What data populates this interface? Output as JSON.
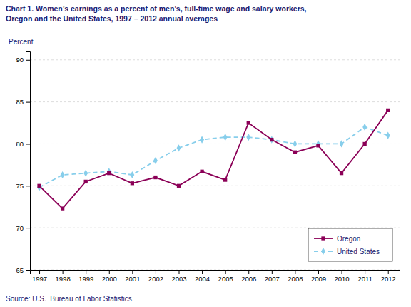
{
  "chart_data": {
    "type": "line",
    "title": "Chart 1. Women’s earnings as a percent of men’s, full-time wage and salary workers,\nOregon and the United States, 1997 – 2012 annual averages",
    "ylabel": "Percent",
    "source": "Source: U.S.  Bureau of Labor Statistics.",
    "x": [
      1997,
      1998,
      1999,
      2000,
      2001,
      2002,
      2003,
      2004,
      2005,
      2006,
      2007,
      2008,
      2009,
      2010,
      2011,
      2012
    ],
    "series": [
      {
        "name": "Oregon",
        "color": "#8B0057",
        "marker": "square",
        "line_style": "solid",
        "values": [
          75.0,
          72.3,
          75.5,
          76.5,
          75.3,
          76.0,
          75.0,
          76.7,
          75.7,
          82.5,
          80.5,
          79.0,
          79.8,
          76.5,
          80.0,
          84.0
        ]
      },
      {
        "name": "United States",
        "color": "#87CEEB",
        "marker": "diamond",
        "line_style": "dashed",
        "values": [
          74.8,
          76.3,
          76.5,
          76.7,
          76.3,
          78.0,
          79.5,
          80.5,
          80.8,
          80.8,
          80.5,
          80.0,
          80.0,
          80.0,
          82.0,
          81.0
        ]
      }
    ],
    "xlim": [
      1996.6,
      2012.5
    ],
    "xticks": [
      1997,
      1998,
      1999,
      2000,
      2001,
      2002,
      2003,
      2004,
      2005,
      2006,
      2007,
      2008,
      2009,
      2010,
      2011,
      2012
    ],
    "ylim": [
      65,
      91
    ],
    "yticks": [
      65,
      70,
      75,
      80,
      85,
      90
    ],
    "grid": true,
    "legend": "lower right"
  }
}
